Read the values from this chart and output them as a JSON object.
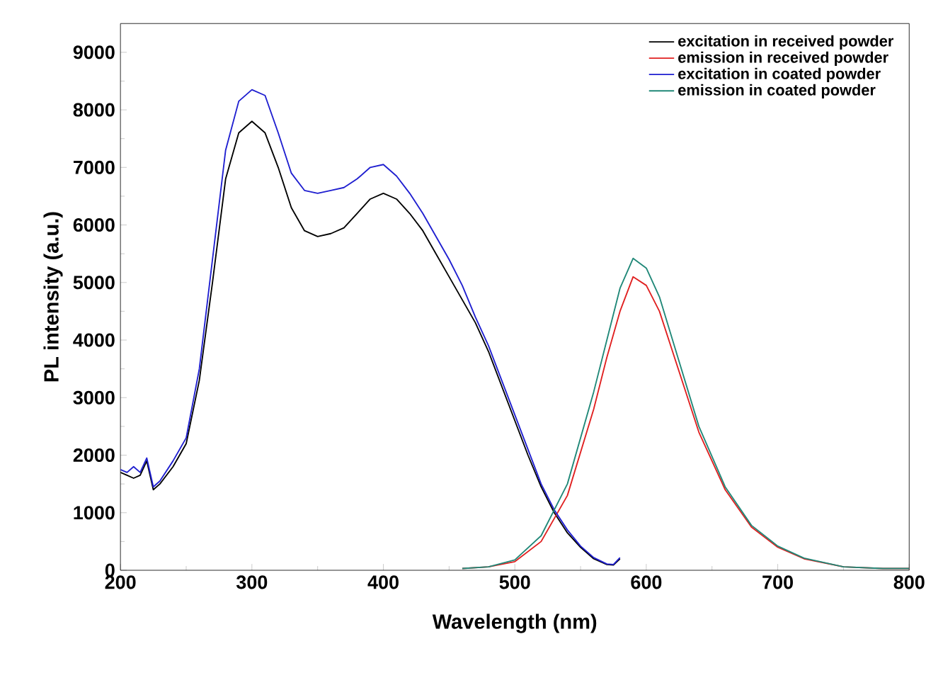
{
  "chart_data": {
    "type": "line",
    "xlabel": "Wavelength (nm)",
    "ylabel": "PL intensity (a.u.)",
    "xlim": [
      200,
      800
    ],
    "ylim": [
      0,
      9500
    ],
    "xticks": [
      200,
      300,
      400,
      500,
      600,
      700,
      800
    ],
    "yticks": [
      0,
      1000,
      2000,
      3000,
      4000,
      5000,
      6000,
      7000,
      8000,
      9000
    ],
    "legend": "top right",
    "marker": "none",
    "line_style": "solid",
    "grid": false,
    "series": [
      {
        "name": "excitation in received powder",
        "color": "#000000",
        "x": [
          200,
          205,
          210,
          215,
          220,
          225,
          230,
          240,
          250,
          260,
          270,
          280,
          290,
          300,
          310,
          320,
          330,
          340,
          350,
          360,
          370,
          380,
          390,
          400,
          410,
          420,
          430,
          440,
          450,
          460,
          470,
          480,
          490,
          500,
          510,
          520,
          530,
          540,
          550,
          560,
          570,
          575,
          580
        ],
        "values": [
          1700,
          1650,
          1600,
          1650,
          1900,
          1400,
          1500,
          1800,
          2200,
          3300,
          5000,
          6800,
          7600,
          7800,
          7600,
          7000,
          6300,
          5900,
          5800,
          5850,
          5950,
          6200,
          6450,
          6550,
          6450,
          6200,
          5900,
          5500,
          5100,
          4700,
          4300,
          3800,
          3200,
          2600,
          2000,
          1450,
          1000,
          650,
          400,
          200,
          100,
          90,
          200
        ]
      },
      {
        "name": "emission in received powder",
        "color": "#e02020",
        "x": [
          460,
          480,
          500,
          520,
          540,
          560,
          570,
          580,
          590,
          600,
          610,
          620,
          640,
          660,
          680,
          700,
          720,
          750,
          780,
          800
        ],
        "values": [
          30,
          60,
          150,
          500,
          1300,
          2800,
          3700,
          4500,
          5100,
          4950,
          4500,
          3800,
          2400,
          1400,
          750,
          400,
          200,
          60,
          30,
          30
        ]
      },
      {
        "name": "excitation in coated powder",
        "color": "#1f1fd0",
        "x": [
          200,
          205,
          210,
          215,
          220,
          225,
          230,
          240,
          250,
          260,
          270,
          280,
          290,
          300,
          310,
          320,
          330,
          340,
          350,
          360,
          370,
          380,
          390,
          400,
          410,
          420,
          430,
          440,
          450,
          460,
          470,
          480,
          490,
          500,
          510,
          520,
          530,
          540,
          550,
          560,
          570,
          575,
          580
        ],
        "values": [
          1750,
          1700,
          1800,
          1700,
          1950,
          1450,
          1550,
          1900,
          2300,
          3500,
          5400,
          7300,
          8150,
          8350,
          8250,
          7600,
          6900,
          6600,
          6550,
          6600,
          6650,
          6800,
          7000,
          7050,
          6850,
          6550,
          6200,
          5800,
          5400,
          4950,
          4400,
          3900,
          3300,
          2700,
          2100,
          1500,
          1050,
          700,
          420,
          220,
          110,
          100,
          220
        ]
      },
      {
        "name": "emission in coated powder",
        "color": "#208878",
        "x": [
          460,
          480,
          500,
          520,
          540,
          560,
          570,
          580,
          590,
          600,
          610,
          620,
          640,
          660,
          680,
          700,
          720,
          750,
          780,
          800
        ],
        "values": [
          30,
          60,
          180,
          600,
          1500,
          3100,
          4000,
          4900,
          5420,
          5250,
          4750,
          4000,
          2500,
          1450,
          780,
          420,
          210,
          60,
          30,
          30
        ]
      }
    ]
  }
}
